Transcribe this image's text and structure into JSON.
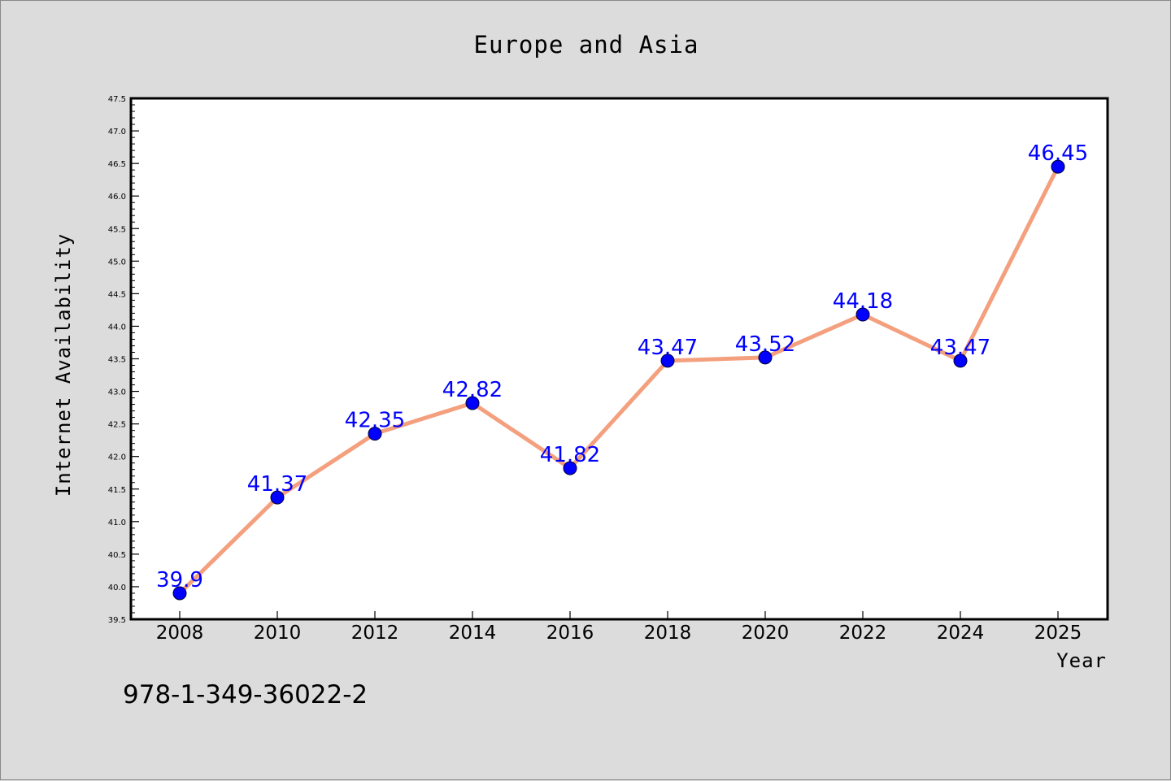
{
  "chart_data": {
    "type": "line",
    "title": "Europe and Asia",
    "xlabel": "Year",
    "ylabel": "Internet Availability",
    "x": [
      "2008",
      "2010",
      "2012",
      "2014",
      "2016",
      "2018",
      "2020",
      "2022",
      "2024",
      "2025"
    ],
    "series": [
      {
        "values": [
          39.9,
          41.37,
          42.35,
          42.82,
          41.82,
          43.47,
          43.52,
          44.18,
          43.47,
          46.45
        ]
      }
    ],
    "data_labels": [
      "39.9",
      "41.37",
      "42.35",
      "42.82",
      "41.82",
      "43.47",
      "43.52",
      "44.18",
      "43.47",
      "46.45"
    ],
    "ylim": [
      39.5,
      47.5
    ],
    "yticks": [
      "39.5",
      "40.0",
      "40.5",
      "41.0",
      "41.5",
      "42.0",
      "42.5",
      "43.0",
      "43.5",
      "44.0",
      "44.5",
      "45.0",
      "45.5",
      "46.0",
      "46.5",
      "47.0",
      "47.5"
    ],
    "grid": false,
    "line_color": "#f4a07e",
    "marker_color": "#0000ff",
    "label_color": "#0000ff",
    "background": "#dcdcdc",
    "plot_background": "#ffffff"
  },
  "annotation": {
    "isbn": "978-1-349-36022-2"
  }
}
